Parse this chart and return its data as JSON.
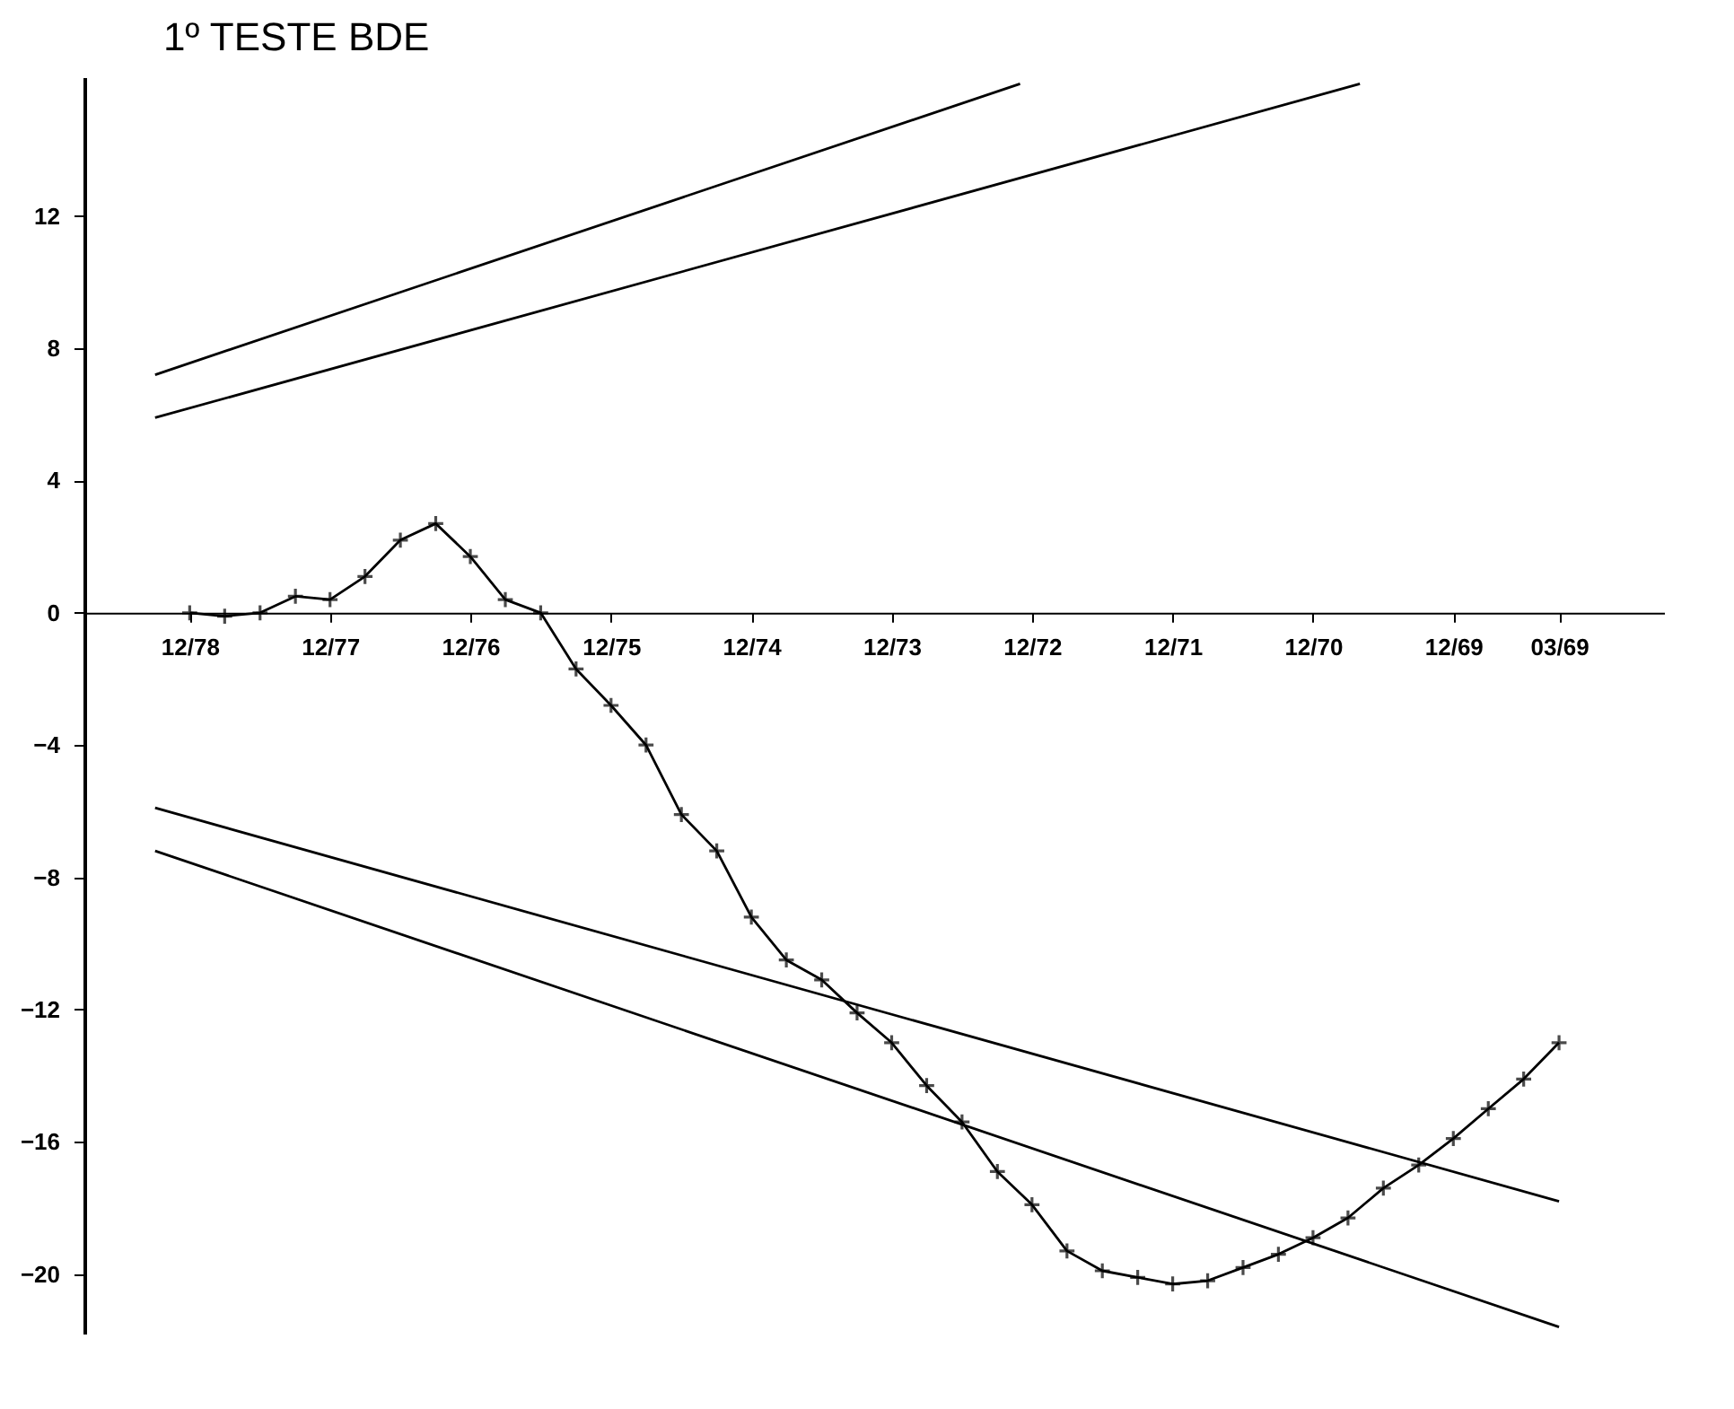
{
  "chart_data": {
    "type": "line",
    "title": "1º TESTE BDE",
    "xlim": [
      "1979-09",
      "1968-06"
    ],
    "xticks": [
      {
        "value": "1978-12",
        "label": "12/78"
      },
      {
        "value": "1977-12",
        "label": "12/77"
      },
      {
        "value": "1976-12",
        "label": "12/76"
      },
      {
        "value": "1975-12",
        "label": "12/75"
      },
      {
        "value": "1974-12",
        "label": "12/74"
      },
      {
        "value": "1973-12",
        "label": "12/73"
      },
      {
        "value": "1972-12",
        "label": "12/72"
      },
      {
        "value": "1971-12",
        "label": "12/71"
      },
      {
        "value": "1970-12",
        "label": "12/70"
      },
      {
        "value": "1969-12",
        "label": "12/69"
      },
      {
        "value": "1969-03",
        "label": "03/69"
      }
    ],
    "ylim": [
      -21.8,
      16.2
    ],
    "yticks": [
      12,
      8,
      4,
      0,
      -4,
      -8,
      -12,
      -16,
      -20
    ],
    "grid": false,
    "legend": false,
    "series": [
      {
        "color": "#000000",
        "marker": "cross",
        "line_style": "solid",
        "x": [
          "1978-12",
          "1978-09",
          "1978-06",
          "1978-03",
          "1977-12",
          "1977-09",
          "1977-06",
          "1977-03",
          "1976-12",
          "1976-09",
          "1976-06",
          "1976-03",
          "1975-12",
          "1975-09",
          "1975-06",
          "1975-03",
          "1974-12",
          "1974-09",
          "1974-06",
          "1974-03",
          "1973-12",
          "1973-09",
          "1973-06",
          "1973-03",
          "1972-12",
          "1972-09",
          "1972-06",
          "1972-03",
          "1971-12",
          "1971-09",
          "1971-06",
          "1971-03",
          "1970-12",
          "1970-09",
          "1970-06",
          "1970-03",
          "1969-12",
          "1969-09",
          "1969-06",
          "1969-03"
        ],
        "values": [
          0,
          -0.1,
          0,
          0.5,
          0.4,
          1.1,
          2.2,
          2.7,
          1.7,
          0.4,
          0,
          -1.7,
          -2.8,
          -4.0,
          -6.1,
          -7.2,
          -9.2,
          -10.5,
          -11.1,
          -12.1,
          -13.0,
          -14.3,
          -15.4,
          -16.9,
          -17.9,
          -19.3,
          -19.9,
          -20.1,
          -20.3,
          -20.2,
          -19.8,
          -19.4,
          -18.9,
          -18.3,
          -17.4,
          -16.7,
          -15.9,
          -15.0,
          -14.1,
          -13.0
        ]
      },
      {
        "color": "#000000",
        "marker": "none",
        "line_style": "solid",
        "x": [
          "1979-03",
          "1973-01"
        ],
        "values": [
          7.2,
          16.0
        ]
      },
      {
        "color": "#000000",
        "marker": "none",
        "line_style": "solid",
        "x": [
          "1979-03",
          "1970-08"
        ],
        "values": [
          5.9,
          16.0
        ]
      },
      {
        "color": "#000000",
        "marker": "none",
        "line_style": "solid",
        "x": [
          "1979-03",
          "1969-03"
        ],
        "values": [
          -5.9,
          -17.8
        ]
      },
      {
        "color": "#000000",
        "marker": "none",
        "line_style": "solid",
        "x": [
          "1979-03",
          "1969-03"
        ],
        "values": [
          -7.2,
          -21.6
        ]
      }
    ]
  }
}
